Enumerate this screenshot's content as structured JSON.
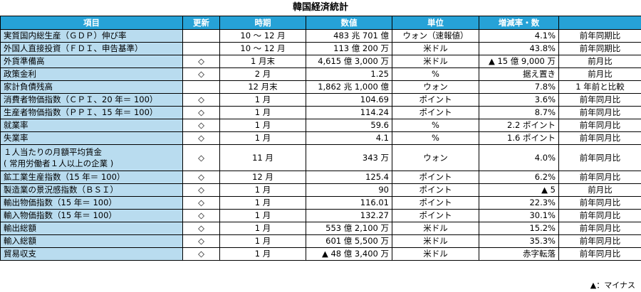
{
  "title": "韓国経済統計",
  "headers": [
    "項目",
    "更新",
    "時期",
    "数値",
    "単位",
    "増減率・数",
    ""
  ],
  "rows": [
    {
      "item": "実質国内総生産（ＧＤＰ）伸び率",
      "updated": "",
      "period": "10 〜 12 月",
      "value": "483 兆 701 億",
      "unit": "ウォン（速報値）",
      "rate": "4.1%",
      "compare": "前年同期比"
    },
    {
      "item": "外国人直接投資（ＦＤＩ、申告基準）",
      "updated": "",
      "period": "10 〜 12 月",
      "value": "113 億 200 万",
      "unit": "米ドル",
      "rate": "43.8%",
      "compare": "前年同期比"
    },
    {
      "item": "外貨準備高",
      "updated": "◇",
      "period": "1 月末",
      "value": "4,615 億 3,000 万",
      "unit": "米ドル",
      "rate": "▲ 15 億 9,000 万",
      "compare": "前月比"
    },
    {
      "item": "政策金利",
      "updated": "◇",
      "period": "2 月",
      "value": "1.25",
      "unit": "%",
      "rate": "据え置き",
      "compare": "前月比"
    },
    {
      "item": "家計負債残高",
      "updated": "",
      "period": "12 月末",
      "value": "1,862 兆 1,000 億",
      "unit": "ウォン",
      "rate": "7.8%",
      "compare": "1 年前と比較"
    },
    {
      "item": "消費者物価指数（ＣＰＩ、20 年＝ 100）",
      "updated": "◇",
      "period": "1 月",
      "value": "104.69",
      "unit": "ポイント",
      "rate": "3.6%",
      "compare": "前年同月比"
    },
    {
      "item": "生産者物価指数（ＰＰＩ、15 年＝ 100）",
      "updated": "◇",
      "period": "1 月",
      "value": "114.24",
      "unit": "ポイント",
      "rate": "8.7%",
      "compare": "前年同月比"
    },
    {
      "item": "就業率",
      "updated": "◇",
      "period": "1 月",
      "value": "59.6",
      "unit": "%",
      "rate": "2.2 ポイント",
      "compare": "前年同月比"
    },
    {
      "item": "失業率",
      "updated": "◇",
      "period": "1 月",
      "value": "4.1",
      "unit": "%",
      "rate": "1.6 ポイント",
      "compare": "前年同月比"
    },
    {
      "item": "１人当たりの月額平均賃金\n( 常用労働者１人以上の企業 )",
      "updated": "◇",
      "period": "11 月",
      "value": "343 万",
      "unit": "ウォン",
      "rate": "4.0%",
      "compare": "前年同月比",
      "tall": true
    },
    {
      "item": "鉱工業生産指数（15 年＝ 100）",
      "updated": "◇",
      "period": "12 月",
      "value": "125.4",
      "unit": "ポイント",
      "rate": "6.2%",
      "compare": "前年同月比"
    },
    {
      "item": "製造業の景況感指数（ＢＳＩ）",
      "updated": "◇",
      "period": "1 月",
      "value": "90",
      "unit": "ポイント",
      "rate": "▲ 5",
      "compare": "前月比"
    },
    {
      "item": "輸出物価指数（15 年＝ 100）",
      "updated": "◇",
      "period": "1 月",
      "value": "116.01",
      "unit": "ポイント",
      "rate": "22.3%",
      "compare": "前年同月比"
    },
    {
      "item": "輸入物価指数（15 年＝ 100）",
      "updated": "◇",
      "period": "1 月",
      "value": "132.27",
      "unit": "ポイント",
      "rate": "30.1%",
      "compare": "前年同月比"
    },
    {
      "item": "輸出総額",
      "updated": "◇",
      "period": "1 月",
      "value": "553 億 2,100 万",
      "unit": "米ドル",
      "rate": "15.2%",
      "compare": "前年同月比"
    },
    {
      "item": "輸入総額",
      "updated": "◇",
      "period": "1 月",
      "value": "601 億 5,500 万",
      "unit": "米ドル",
      "rate": "35.3%",
      "compare": "前年同月比"
    },
    {
      "item": "貿易収支",
      "updated": "◇",
      "period": "1 月",
      "value": "▲ 48 億 3,400 万",
      "unit": "米ドル",
      "rate": "赤字転落",
      "compare": "前年同月比"
    }
  ],
  "note": "▲：マイナス",
  "colors": {
    "header_bg": "#26a2d7",
    "item_bg": "#b9dcef"
  },
  "chart_data": {
    "type": "table",
    "title": "韓国経済統計",
    "columns": [
      "項目",
      "更新",
      "時期",
      "数値",
      "単位",
      "増減率・数",
      ""
    ],
    "rows": [
      [
        "実質国内総生産（ＧＤＰ）伸び率",
        "",
        "10 〜 12 月",
        "483 兆 701 億",
        "ウォン（速報値）",
        "4.1%",
        "前年同期比"
      ],
      [
        "外国人直接投資（ＦＤＩ、申告基準）",
        "",
        "10 〜 12 月",
        "113 億 200 万",
        "米ドル",
        "43.8%",
        "前年同期比"
      ],
      [
        "外貨準備高",
        "◇",
        "1 月末",
        "4,615 億 3,000 万",
        "米ドル",
        "▲ 15 億 9,000 万",
        "前月比"
      ],
      [
        "政策金利",
        "◇",
        "2 月",
        "1.25",
        "%",
        "据え置き",
        "前月比"
      ],
      [
        "家計負債残高",
        "",
        "12 月末",
        "1,862 兆 1,000 億",
        "ウォン",
        "7.8%",
        "1 年前と比較"
      ],
      [
        "消費者物価指数（ＣＰＩ、20 年＝ 100）",
        "◇",
        "1 月",
        "104.69",
        "ポイント",
        "3.6%",
        "前年同月比"
      ],
      [
        "生産者物価指数（ＰＰＩ、15 年＝ 100）",
        "◇",
        "1 月",
        "114.24",
        "ポイント",
        "8.7%",
        "前年同月比"
      ],
      [
        "就業率",
        "◇",
        "1 月",
        "59.6",
        "%",
        "2.2 ポイント",
        "前年同月比"
      ],
      [
        "失業率",
        "◇",
        "1 月",
        "4.1",
        "%",
        "1.6 ポイント",
        "前年同月比"
      ],
      [
        "１人当たりの月額平均賃金 ( 常用労働者１人以上の企業 )",
        "◇",
        "11 月",
        "343 万",
        "ウォン",
        "4.0%",
        "前年同月比"
      ],
      [
        "鉱工業生産指数（15 年＝ 100）",
        "◇",
        "12 月",
        "125.4",
        "ポイント",
        "6.2%",
        "前年同月比"
      ],
      [
        "製造業の景況感指数（ＢＳＩ）",
        "◇",
        "1 月",
        "90",
        "ポイント",
        "▲ 5",
        "前月比"
      ],
      [
        "輸出物価指数（15 年＝ 100）",
        "◇",
        "1 月",
        "116.01",
        "ポイント",
        "22.3%",
        "前年同月比"
      ],
      [
        "輸入物価指数（15 年＝ 100）",
        "◇",
        "1 月",
        "132.27",
        "ポイント",
        "30.1%",
        "前年同月比"
      ],
      [
        "輸出総額",
        "◇",
        "1 月",
        "553 億 2,100 万",
        "米ドル",
        "15.2%",
        "前年同月比"
      ],
      [
        "輸入総額",
        "◇",
        "1 月",
        "601 億 5,500 万",
        "米ドル",
        "35.3%",
        "前年同月比"
      ],
      [
        "貿易収支",
        "◇",
        "1 月",
        "▲ 48 億 3,400 万",
        "米ドル",
        "赤字転落",
        "前年同月比"
      ]
    ]
  }
}
